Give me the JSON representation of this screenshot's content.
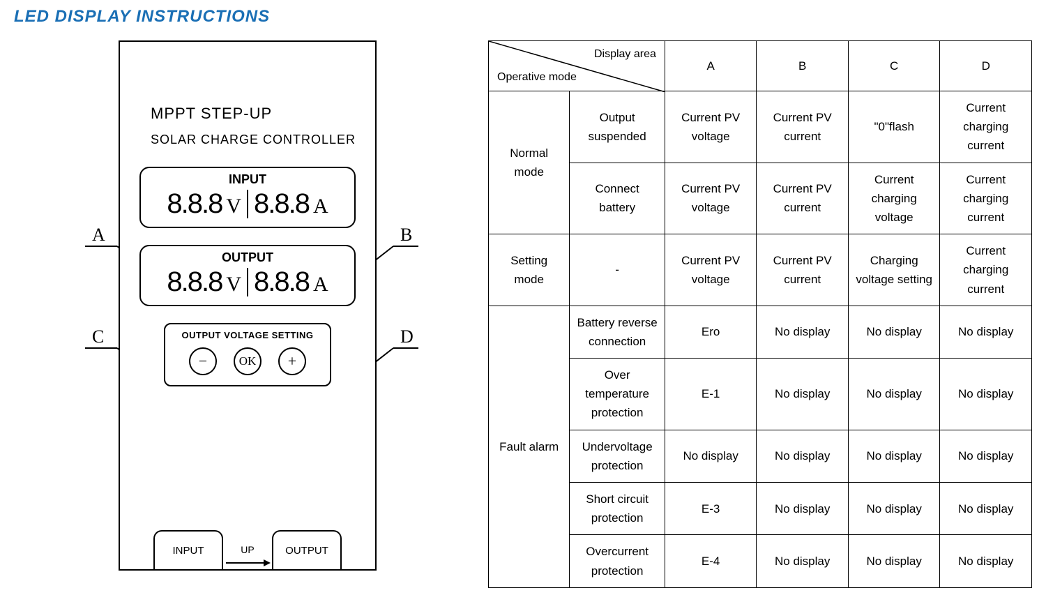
{
  "title": "LED DISPLAY INSTRUCTIONS",
  "colors": {
    "title": "#1a6fb5",
    "line": "#000000",
    "bg": "#ffffff"
  },
  "diagram": {
    "device_title": "MPPT STEP-UP",
    "device_subtitle": "SOLAR CHARGE CONTROLLER",
    "input_panel": {
      "label": "INPUT",
      "left_value": "8.8.8",
      "left_unit": "V",
      "right_value": "8.8.8",
      "right_unit": "A"
    },
    "output_panel": {
      "label": "OUTPUT",
      "left_value": "8.8.8",
      "left_unit": "V",
      "right_value": "8.8.8",
      "right_unit": "A"
    },
    "setting_label": "OUTPUT VOLTAGE SETTING",
    "buttons": {
      "minus": "−",
      "ok": "OK",
      "plus": "+"
    },
    "io": {
      "input": "INPUT",
      "up": "UP",
      "output": "OUTPUT"
    },
    "pointers": {
      "A": "A",
      "B": "B",
      "C": "C",
      "D": "D"
    }
  },
  "table": {
    "header": {
      "diag_top": "Display area",
      "diag_bot": "Operative mode",
      "cols": [
        "A",
        "B",
        "C",
        "D"
      ]
    },
    "groups": [
      {
        "mode": "Normal mode",
        "rows": [
          {
            "state": "Output suspended",
            "A": "Current PV voltage",
            "B": "Current PV current",
            "C": "\"0\"flash",
            "D": "Current charging current"
          },
          {
            "state": "Connect battery",
            "A": "Current PV voltage",
            "B": "Current PV current",
            "C": "Current charging voltage",
            "D": "Current charging current"
          }
        ]
      },
      {
        "mode": "Setting mode",
        "rows": [
          {
            "state": "-",
            "A": "Current PV voltage",
            "B": "Current PV current",
            "C": "Charging voltage setting",
            "D": "Current charging current"
          }
        ]
      },
      {
        "mode": "Fault alarm",
        "rows": [
          {
            "state": "Battery reverse connection",
            "A": "Ero",
            "B": "No display",
            "C": "No display",
            "D": "No display"
          },
          {
            "state": "Over temperature protection",
            "A": "E-1",
            "B": "No display",
            "C": "No display",
            "D": "No display"
          },
          {
            "state": "Undervoltage protection",
            "A": "No display",
            "B": "No display",
            "C": "No display",
            "D": "No display"
          },
          {
            "state": "Short circuit protection",
            "A": "E-3",
            "B": "No display",
            "C": "No display",
            "D": "No display"
          },
          {
            "state": "Overcurrent protection",
            "A": "E-4",
            "B": "No display",
            "C": "No display",
            "D": "No display"
          }
        ]
      }
    ]
  }
}
